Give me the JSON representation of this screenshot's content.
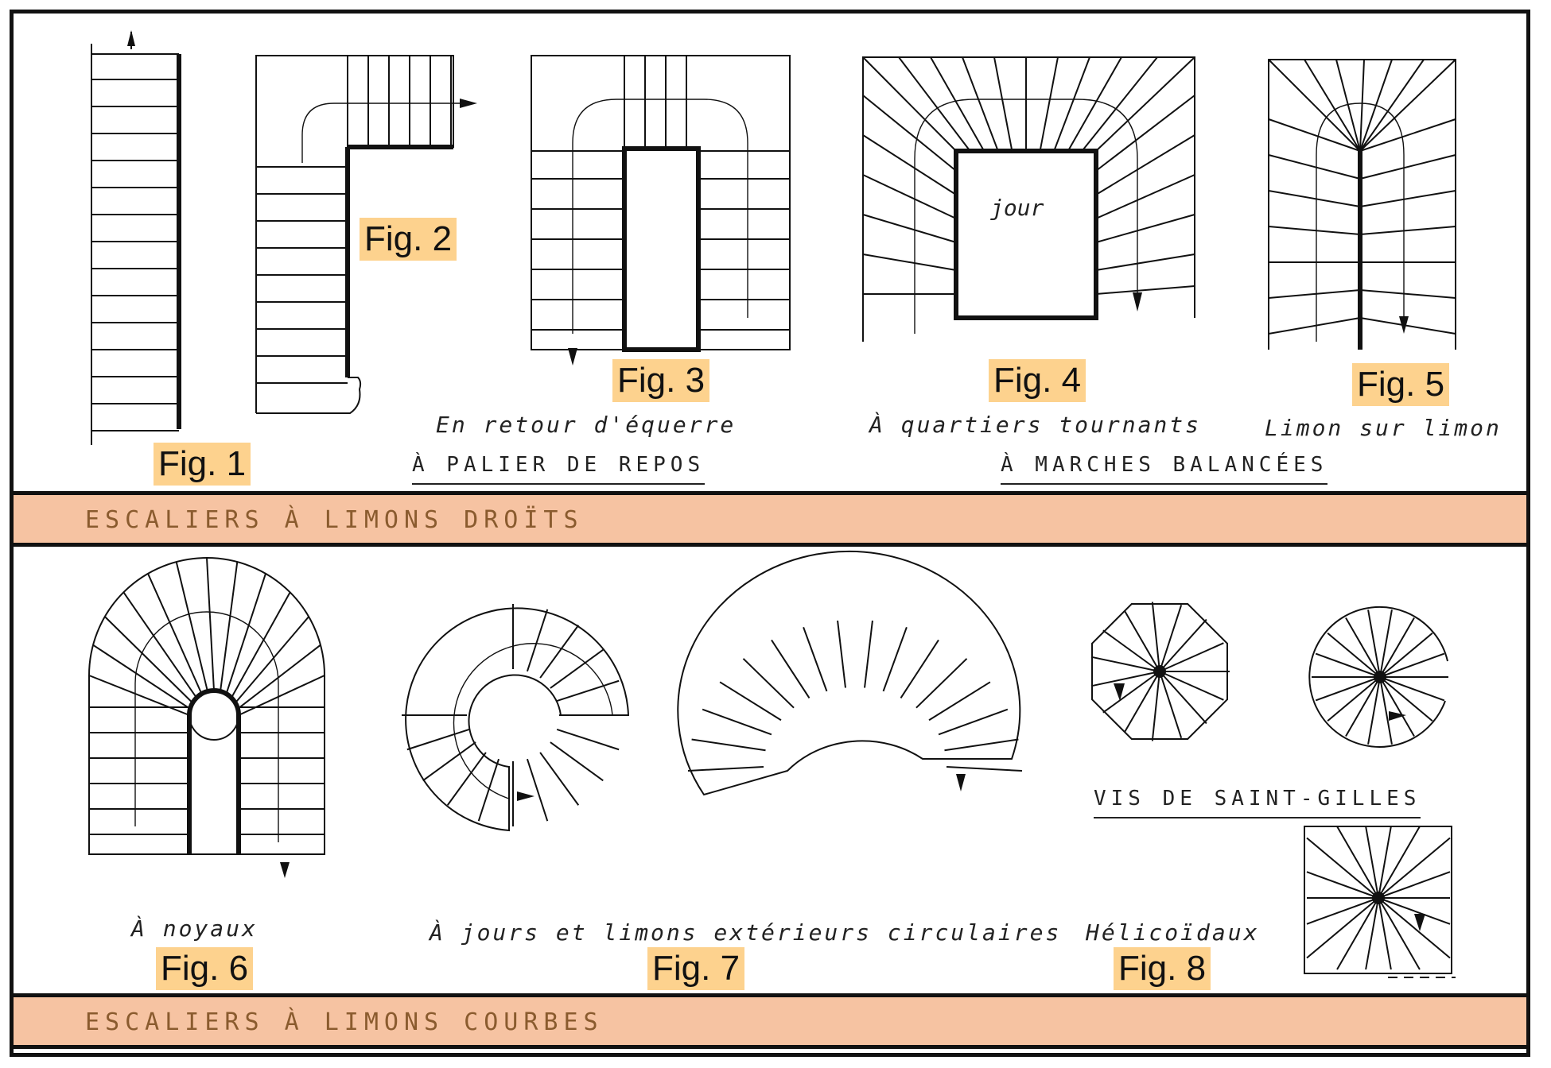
{
  "figures": {
    "fig1": "Fig. 1",
    "fig2": "Fig. 2",
    "fig3": "Fig. 3",
    "fig4": "Fig. 4",
    "fig5": "Fig. 5",
    "fig6": "Fig. 6",
    "fig7": "Fig. 7",
    "fig8": "Fig. 8"
  },
  "captions": {
    "en_retour": "En retour d'équerre",
    "quartiers": "À quartiers tournants",
    "limon_sur_limon": "Limon sur limon",
    "noyaux": "À noyaux",
    "jours_limons": "À jours et limons extérieurs circulaires",
    "helicoidaux": "Hélicoïdaux",
    "jour": "jour"
  },
  "headings": {
    "palier": "À PALIER DE REPOS",
    "marches": "À MARCHES BALANCÉES",
    "vis": "VIS DE SAINT-GILLES"
  },
  "bands": {
    "droits": "ESCALIERS À LIMONS DROÏTS",
    "courbes": "ESCALIERS À LIMONS COURBES"
  },
  "colors": {
    "band": "#f6c3a2",
    "label_highlight": "#fdd28e",
    "band_text": "#8a5b2e"
  }
}
